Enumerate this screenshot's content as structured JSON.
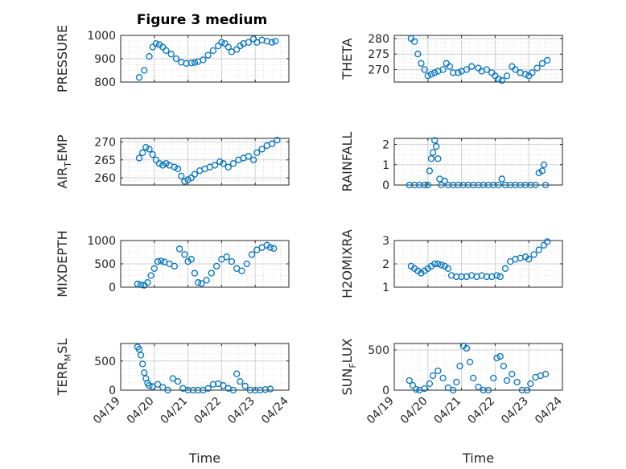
{
  "figure": {
    "title": "Figure 3 medium",
    "marker_color": "#0072BD"
  },
  "chart_data": [
    {
      "type": "scatter",
      "title": "Figure 3 medium",
      "ylabel": "PRESSURE",
      "xlabel": "",
      "xlim": [
        0,
        5
      ],
      "ylim": [
        800,
        1000
      ],
      "yticks": [
        800,
        900,
        1000
      ],
      "yticklabels": [
        "800",
        "900",
        "1000"
      ],
      "grid": true,
      "marker": "circle",
      "series": [
        {
          "x": [
            0.55,
            0.7,
            0.85,
            0.95,
            1.05,
            1.15,
            1.25,
            1.35,
            1.5,
            1.65,
            1.8,
            1.95,
            2.1,
            2.2,
            2.3,
            2.45,
            2.6,
            2.75,
            2.9,
            3.0,
            3.1,
            3.2,
            3.3,
            3.45,
            3.55,
            3.65,
            3.8,
            3.95,
            4.05,
            4.2,
            4.35,
            4.5,
            4.6
          ],
          "values": [
            820,
            850,
            910,
            950,
            965,
            960,
            950,
            935,
            920,
            900,
            885,
            880,
            882,
            884,
            888,
            895,
            915,
            935,
            955,
            970,
            965,
            950,
            930,
            940,
            955,
            965,
            970,
            985,
            970,
            980,
            975,
            970,
            975
          ]
        }
      ]
    },
    {
      "type": "scatter",
      "ylabel": "THETA",
      "xlabel": "",
      "xlim": [
        0,
        5
      ],
      "ylim": [
        266,
        281
      ],
      "yticks": [
        270,
        275,
        280
      ],
      "yticklabels": [
        "270",
        "275",
        "280"
      ],
      "grid": true,
      "marker": "circle",
      "series": [
        {
          "x": [
            0.5,
            0.6,
            0.7,
            0.8,
            0.9,
            1.0,
            1.1,
            1.2,
            1.3,
            1.45,
            1.55,
            1.65,
            1.75,
            1.9,
            2.0,
            2.15,
            2.3,
            2.5,
            2.6,
            2.75,
            2.9,
            3.0,
            3.1,
            3.2,
            3.35,
            3.5,
            3.6,
            3.75,
            3.9,
            4.0,
            4.1,
            4.25,
            4.4,
            4.55
          ],
          "values": [
            280,
            279,
            275,
            272,
            270,
            268,
            268.5,
            269,
            269.5,
            270,
            272,
            271,
            269,
            269,
            269.5,
            270,
            271,
            270.5,
            269.5,
            270,
            269,
            268,
            267,
            266.5,
            268,
            271,
            270,
            269,
            268.5,
            268,
            269,
            270.5,
            272,
            273
          ]
        }
      ]
    },
    {
      "type": "scatter",
      "ylabel": "AIR_TEMP",
      "xlabel": "",
      "xlim": [
        0,
        5
      ],
      "ylim": [
        258,
        271
      ],
      "yticks": [
        260,
        265,
        270
      ],
      "yticklabels": [
        "260",
        "265",
        "270"
      ],
      "grid": true,
      "marker": "circle",
      "series": [
        {
          "x": [
            0.55,
            0.65,
            0.75,
            0.85,
            0.95,
            1.05,
            1.15,
            1.25,
            1.35,
            1.45,
            1.6,
            1.7,
            1.8,
            1.9,
            2.0,
            2.1,
            2.2,
            2.35,
            2.5,
            2.65,
            2.8,
            2.95,
            3.05,
            3.2,
            3.35,
            3.5,
            3.65,
            3.8,
            3.95,
            4.05,
            4.2,
            4.35,
            4.5,
            4.65
          ],
          "values": [
            265.5,
            267,
            268.5,
            268,
            266.5,
            265,
            264,
            263.5,
            264,
            263.5,
            263,
            262.5,
            260.5,
            259,
            259.5,
            260,
            261,
            262,
            262.5,
            263,
            263.5,
            264.5,
            264,
            263,
            264,
            265,
            265.5,
            266,
            265,
            267,
            268,
            269,
            269.5,
            270.5
          ]
        }
      ]
    },
    {
      "type": "scatter",
      "ylabel": "RAINFALL",
      "xlabel": "",
      "xlim": [
        0,
        5
      ],
      "ylim": [
        0,
        2.3
      ],
      "yticks": [
        0,
        1,
        2
      ],
      "yticklabels": [
        "0",
        "1",
        "2"
      ],
      "grid": true,
      "marker": "circle",
      "series": [
        {
          "x": [
            0.45,
            0.6,
            0.75,
            0.9,
            1.0,
            1.05,
            1.1,
            1.15,
            1.2,
            1.25,
            1.3,
            1.35,
            1.4,
            1.5,
            1.6,
            1.75,
            1.9,
            2.05,
            2.2,
            2.35,
            2.5,
            2.65,
            2.8,
            2.95,
            3.1,
            3.2,
            3.3,
            3.45,
            3.6,
            3.75,
            3.9,
            4.05,
            4.2,
            4.3,
            4.4,
            4.45,
            4.5
          ],
          "values": [
            0,
            0,
            0,
            0,
            0,
            0.7,
            1.3,
            1.6,
            2.2,
            1.9,
            1.3,
            0.3,
            0,
            0.2,
            0,
            0,
            0,
            0,
            0,
            0,
            0,
            0,
            0,
            0,
            0,
            0.3,
            0,
            0,
            0,
            0,
            0,
            0,
            0,
            0.6,
            0.7,
            1.0,
            0
          ]
        }
      ]
    },
    {
      "type": "scatter",
      "ylabel": "MIXDEPTH",
      "xlabel": "",
      "xlim": [
        0,
        5
      ],
      "ylim": [
        0,
        1000
      ],
      "yticks": [
        0,
        500,
        1000
      ],
      "yticklabels": [
        "0",
        "500",
        "1000"
      ],
      "grid": true,
      "marker": "circle",
      "series": [
        {
          "x": [
            0.5,
            0.6,
            0.7,
            0.8,
            0.9,
            1.0,
            1.1,
            1.2,
            1.3,
            1.45,
            1.6,
            1.75,
            1.9,
            2.0,
            2.1,
            2.2,
            2.3,
            2.4,
            2.55,
            2.7,
            2.85,
            3.0,
            3.15,
            3.3,
            3.45,
            3.6,
            3.75,
            3.9,
            4.05,
            4.2,
            4.35,
            4.45,
            4.55
          ],
          "values": [
            70,
            50,
            40,
            100,
            250,
            400,
            550,
            560,
            540,
            500,
            450,
            820,
            700,
            550,
            600,
            300,
            100,
            80,
            150,
            300,
            450,
            600,
            650,
            550,
            400,
            350,
            500,
            700,
            800,
            850,
            900,
            850,
            830
          ]
        }
      ]
    },
    {
      "type": "scatter",
      "ylabel": "H2OMIXRA",
      "xlabel": "",
      "xlim": [
        0,
        5
      ],
      "ylim": [
        1,
        3
      ],
      "yticks": [
        1,
        2,
        3
      ],
      "yticklabels": [
        "1",
        "2",
        "3"
      ],
      "grid": true,
      "marker": "circle",
      "series": [
        {
          "x": [
            0.5,
            0.6,
            0.7,
            0.8,
            0.9,
            1.0,
            1.1,
            1.2,
            1.3,
            1.4,
            1.5,
            1.6,
            1.7,
            1.85,
            2.0,
            2.15,
            2.3,
            2.45,
            2.6,
            2.75,
            2.9,
            3.05,
            3.15,
            3.3,
            3.45,
            3.6,
            3.75,
            3.9,
            4.0,
            4.15,
            4.3,
            4.45,
            4.55
          ],
          "values": [
            1.9,
            1.8,
            1.7,
            1.6,
            1.7,
            1.8,
            1.9,
            2.0,
            2.0,
            1.95,
            1.9,
            1.8,
            1.5,
            1.45,
            1.45,
            1.45,
            1.5,
            1.45,
            1.5,
            1.45,
            1.45,
            1.5,
            1.45,
            1.8,
            2.1,
            2.2,
            2.25,
            2.3,
            2.2,
            2.4,
            2.6,
            2.8,
            2.95
          ]
        }
      ]
    },
    {
      "type": "scatter",
      "ylabel": "TERR_MSL",
      "xlabel": "Time",
      "xlim": [
        0,
        5
      ],
      "ylim": [
        0,
        800
      ],
      "yticks": [
        0,
        500
      ],
      "yticklabels": [
        "0",
        "500"
      ],
      "xticklabels": [
        "04/19",
        "04/20",
        "04/21",
        "04/22",
        "04/23",
        "04/24"
      ],
      "grid": true,
      "marker": "circle",
      "series": [
        {
          "x": [
            0.5,
            0.55,
            0.6,
            0.65,
            0.7,
            0.75,
            0.8,
            0.85,
            0.95,
            1.1,
            1.25,
            1.4,
            1.55,
            1.7,
            1.85,
            2.0,
            2.15,
            2.3,
            2.45,
            2.6,
            2.75,
            2.9,
            3.05,
            3.2,
            3.35,
            3.45,
            3.55,
            3.7,
            3.85,
            4.0,
            4.15,
            4.3,
            4.45
          ],
          "values": [
            740,
            700,
            600,
            450,
            300,
            200,
            120,
            80,
            60,
            100,
            50,
            0,
            200,
            150,
            30,
            0,
            0,
            0,
            0,
            30,
            100,
            110,
            80,
            30,
            0,
            280,
            150,
            70,
            0,
            0,
            0,
            10,
            20
          ]
        }
      ]
    },
    {
      "type": "scatter",
      "ylabel": "SUN_FLUX",
      "xlabel": "Time",
      "xlim": [
        0,
        5
      ],
      "ylim": [
        0,
        580
      ],
      "yticks": [
        0,
        500
      ],
      "yticklabels": [
        "0",
        "500"
      ],
      "xticklabels": [
        "04/19",
        "04/20",
        "04/21",
        "04/22",
        "04/23",
        "04/24"
      ],
      "grid": true,
      "marker": "circle",
      "series": [
        {
          "x": [
            0.45,
            0.55,
            0.65,
            0.75,
            0.9,
            1.05,
            1.15,
            1.3,
            1.45,
            1.6,
            1.75,
            1.85,
            1.95,
            2.05,
            2.15,
            2.25,
            2.35,
            2.5,
            2.65,
            2.8,
            2.95,
            3.05,
            3.15,
            3.25,
            3.35,
            3.5,
            3.65,
            3.8,
            3.95,
            4.05,
            4.2,
            4.35,
            4.5
          ],
          "values": [
            120,
            60,
            10,
            0,
            20,
            80,
            180,
            240,
            150,
            30,
            0,
            100,
            300,
            550,
            520,
            350,
            150,
            40,
            0,
            0,
            150,
            400,
            420,
            300,
            120,
            200,
            100,
            0,
            0,
            80,
            160,
            180,
            200
          ]
        }
      ]
    }
  ]
}
